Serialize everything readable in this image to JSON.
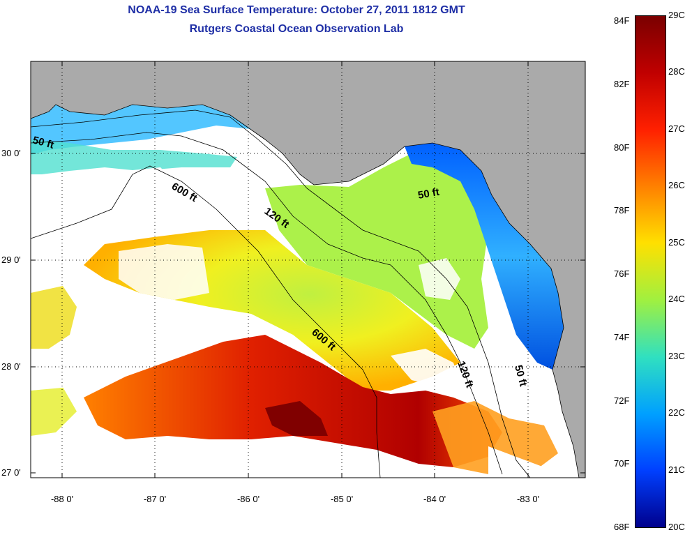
{
  "title": "NOAA-19 Sea Surface Temperature:  October 27, 2011 1812 GMT",
  "subtitle": "Rutgers Coastal Ocean Observation Lab",
  "y_ticks": [
    "30 0'",
    "29 0'",
    "28 0'",
    "27 0'"
  ],
  "x_ticks": [
    "-88 0'",
    "-87 0'",
    "-86 0'",
    "-85 0'",
    "-84 0'",
    "-83 0'"
  ],
  "contour_labels": [
    "50 ft",
    "600 ft",
    "120 ft",
    "50 ft",
    "600 ft",
    "120 ft",
    "50 ft"
  ],
  "colorbar": {
    "fahrenheit": [
      "84F",
      "82F",
      "80F",
      "78F",
      "76F",
      "74F",
      "72F",
      "70F",
      "68F"
    ],
    "celsius": [
      "29C",
      "28C",
      "27C",
      "26C",
      "25C",
      "24C",
      "23C",
      "22C",
      "21C",
      "20C"
    ],
    "colors": [
      "#7a0000",
      "#c00000",
      "#ff2000",
      "#ff8000",
      "#ffe000",
      "#a0f040",
      "#30e0c0",
      "#00a0ff",
      "#0040ff",
      "#00008c"
    ]
  },
  "colors": {
    "land": "#aaaaaa",
    "cloud": "#ffffff",
    "title": "#1f2fa6"
  }
}
